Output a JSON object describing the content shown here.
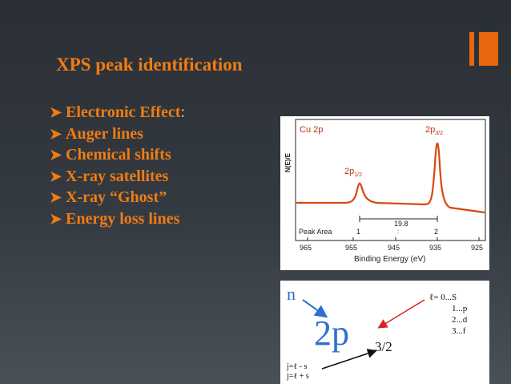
{
  "slide": {
    "title": "XPS peak identification",
    "bullets": [
      {
        "text": "Electronic Effect",
        "suffix": ":"
      },
      {
        "text": "Auger lines",
        "suffix": ""
      },
      {
        "text": "Chemical shifts",
        "suffix": ""
      },
      {
        "text": "X-ray satellites",
        "suffix": ""
      },
      {
        "text": "X-ray “Ghost”",
        "suffix": ""
      },
      {
        "text": "Energy loss lines",
        "suffix": ""
      }
    ],
    "accent_color": "#f07c14"
  },
  "spectrum": {
    "label": "Cu 2p",
    "ylabel": "N(E)/E",
    "xlabel": "Binding Energy (eV)",
    "peak_left": {
      "main": "2p",
      "sub": "1/2"
    },
    "peak_right": {
      "main": "2p",
      "sub": "3/2"
    },
    "peak_area_label": "Peak Area",
    "area_left": "1",
    "area_right": "2",
    "splitting": "19.8",
    "xticks": [
      "965",
      "955",
      "945",
      "935",
      "925"
    ],
    "line_color": "#d9480f"
  },
  "notation": {
    "n_label": "n",
    "main": "2p",
    "sub": "3/2",
    "l_lines": [
      "ℓ= 0...S",
      "1...p",
      "2...d",
      "3...f"
    ],
    "j_lines": [
      "j=ℓ - s",
      "j=ℓ + s"
    ]
  }
}
